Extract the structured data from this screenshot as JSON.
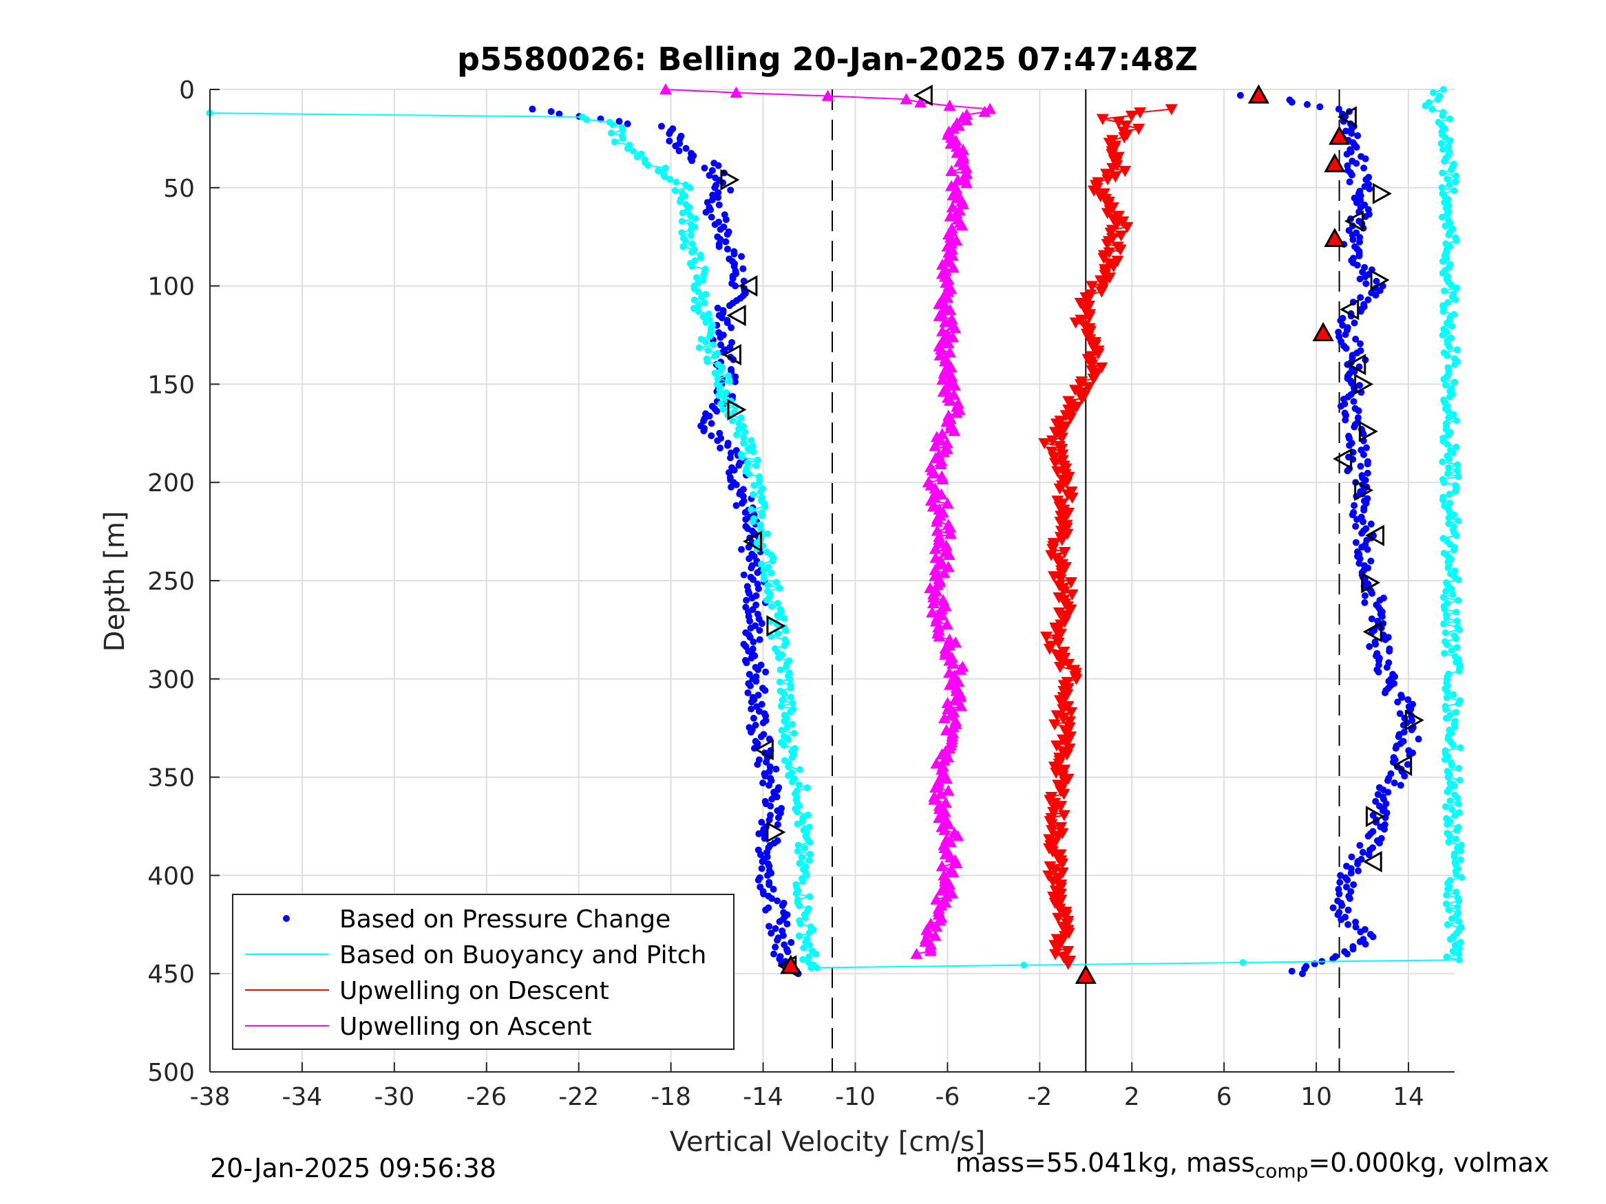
{
  "chart_data": {
    "type": "scatter",
    "title": "p5580026: Belling 20-Jan-2025 07:47:48Z",
    "xlabel": "Vertical Velocity [cm/s]",
    "ylabel": "Depth [m]",
    "xlim": [
      -38,
      16
    ],
    "ylim": [
      0,
      500
    ],
    "y_reversed": true,
    "grid": true,
    "legend_position": "bottom-left",
    "x_ticks": [
      "-38",
      "-34",
      "-30",
      "-26",
      "-22",
      "-18",
      "-14",
      "-10",
      "-6",
      "-2",
      "2",
      "6",
      "10",
      "14"
    ],
    "y_ticks": [
      "0",
      "50",
      "100",
      "150",
      "200",
      "250",
      "300",
      "350",
      "400",
      "450",
      "500"
    ],
    "reference_lines": {
      "dashed_x": [
        -11,
        11
      ],
      "solid_x": [
        0
      ]
    },
    "series": [
      {
        "name": "Based on Pressure Change",
        "color": "#0000ff",
        "marker": "dot",
        "profiles": [
          {
            "part": "descent",
            "depth": [
              10,
              20,
              30,
              40,
              50,
              60,
              70,
              80,
              90,
              100,
              110,
              120,
              130,
              140,
              150,
              160,
              170,
              180,
              190,
              200,
              220,
              240,
              260,
              280,
              300,
              320,
              340,
              360,
              380,
              400,
              420,
              440,
              450
            ],
            "velocity": [
              -24,
              -18,
              -17.5,
              -16.2,
              -15.8,
              -16.2,
              -15.8,
              -15.5,
              -15.2,
              -15,
              -15.5,
              -15.8,
              -15.8,
              -15.6,
              -15.5,
              -15.7,
              -16.5,
              -15.5,
              -15.2,
              -15.0,
              -14.7,
              -14.5,
              -14.3,
              -14.5,
              -14.2,
              -14.3,
              -14.0,
              -13.5,
              -13.8,
              -13.8,
              -13.4,
              -13.1,
              -12.5
            ]
          },
          {
            "part": "ascent",
            "depth": [
              450,
              440,
              430,
              420,
              400,
              380,
              360,
              340,
              320,
              300,
              280,
              260,
              240,
              220,
              200,
              180,
              160,
              140,
              120,
              100,
              80,
              60,
              40,
              20,
              10,
              3
            ],
            "velocity": [
              9,
              11.5,
              12.2,
              11,
              11.5,
              12.5,
              13,
              13.8,
              14.2,
              13,
              12.7,
              12.5,
              12.2,
              12,
              11.8,
              11.8,
              11.5,
              11.8,
              11.2,
              12.5,
              11.5,
              12,
              11.8,
              11.5,
              11.3,
              7
            ]
          }
        ]
      },
      {
        "name": "Based on Buoyancy and Pitch",
        "color": "#00ffff",
        "marker": "dot-line",
        "profiles": [
          {
            "part": "descent",
            "depth": [
              12,
              14,
              18,
              25,
              30,
              40,
              50,
              60,
              70,
              80,
              90,
              100,
              110,
              120,
              130,
              140,
              150,
              160,
              170,
              180,
              190,
              200,
              220,
              240,
              260,
              280,
              300,
              320,
              340,
              360,
              380,
              400,
              420,
              440,
              447
            ],
            "velocity": [
              -38,
              -22,
              -20.5,
              -20.2,
              -20,
              -18.5,
              -17.5,
              -17.3,
              -17.2,
              -17.2,
              -16.8,
              -16.8,
              -16.7,
              -16.5,
              -16.5,
              -16,
              -15.7,
              -15.5,
              -15.2,
              -14.8,
              -14.5,
              -14.3,
              -14.2,
              -13.8,
              -13.5,
              -13.3,
              -13,
              -13,
              -12.8,
              -12.3,
              -12.3,
              -12.3,
              -12.2,
              -12,
              -12
            ]
          },
          {
            "part": "ascent",
            "depth": [
              447,
              443,
              20,
              15,
              10,
              5,
              0
            ],
            "velocity": [
              -12,
              16,
              15.7,
              15.5,
              15,
              15.2,
              15.5
            ]
          }
        ]
      },
      {
        "name": "Upwelling on Descent",
        "color": "#ff0000",
        "marker": "triangle-down",
        "profiles": [
          {
            "part": "descent",
            "depth": [
              10,
              15,
              20,
              30,
              40,
              50,
              60,
              70,
              80,
              90,
              100,
              110,
              120,
              130,
              140,
              150,
              160,
              170,
              180,
              190,
              200,
              220,
              240,
              260,
              280,
              300,
              320,
              340,
              360,
              380,
              400,
              420,
              440,
              445
            ],
            "velocity": [
              3.5,
              1,
              2,
              1,
              1.5,
              0.5,
              1.2,
              1.5,
              1.2,
              1,
              0.5,
              0,
              -0.2,
              0.3,
              0.5,
              0,
              -0.5,
              -1,
              -1.5,
              -1,
              -0.8,
              -1,
              -1.2,
              -0.8,
              -1.5,
              -0.6,
              -1,
              -1,
              -1.2,
              -1.3,
              -1.3,
              -1.1,
              -1,
              -0.5
            ]
          }
        ]
      },
      {
        "name": "Upwelling on Ascent",
        "color": "#ff00ff",
        "marker": "triangle-up",
        "profiles": [
          {
            "part": "ascent",
            "depth": [
              440,
              420,
              400,
              380,
              360,
              340,
              320,
              300,
              280,
              260,
              240,
              220,
              200,
              180,
              160,
              140,
              120,
              100,
              80,
              60,
              40,
              20,
              10,
              5,
              0
            ],
            "velocity": [
              -7,
              -6.3,
              -6,
              -5.8,
              -6.3,
              -6.2,
              -5.8,
              -5.5,
              -6,
              -6.5,
              -6.2,
              -6.2,
              -6.5,
              -6.2,
              -5.7,
              -6.1,
              -6,
              -6.2,
              -5.9,
              -5.5,
              -5.5,
              -5.7,
              -4.5,
              -8,
              -18.5
            ]
          }
        ]
      }
    ],
    "black_triangle_markers": [
      {
        "x": -15.5,
        "y": 46
      },
      {
        "x": -14.6,
        "y": 100
      },
      {
        "x": -15.1,
        "y": 115
      },
      {
        "x": -15.3,
        "y": 135
      },
      {
        "x": -15.2,
        "y": 163
      },
      {
        "x": -14.4,
        "y": 230
      },
      {
        "x": -13.5,
        "y": 273
      },
      {
        "x": -13.9,
        "y": 336
      },
      {
        "x": -13.5,
        "y": 378
      },
      {
        "x": -12.9,
        "y": 446
      },
      {
        "x": -7,
        "y": 3
      },
      {
        "x": 11.4,
        "y": 14
      },
      {
        "x": 12.8,
        "y": 53
      },
      {
        "x": 11.7,
        "y": 67
      },
      {
        "x": 12.7,
        "y": 97
      },
      {
        "x": 11.5,
        "y": 112
      },
      {
        "x": 11.8,
        "y": 140
      },
      {
        "x": 12.0,
        "y": 150
      },
      {
        "x": 12.2,
        "y": 174
      },
      {
        "x": 11.2,
        "y": 188
      },
      {
        "x": 12.0,
        "y": 204
      },
      {
        "x": 12.6,
        "y": 227
      },
      {
        "x": 12.3,
        "y": 251
      },
      {
        "x": 12.5,
        "y": 276
      },
      {
        "x": 14.2,
        "y": 321
      },
      {
        "x": 13.8,
        "y": 344
      },
      {
        "x": 12.5,
        "y": 370
      },
      {
        "x": 12.5,
        "y": 393
      }
    ],
    "red_triangle_markers": [
      {
        "x": 7.5,
        "y": 3
      },
      {
        "x": 11,
        "y": 24
      },
      {
        "x": 10.8,
        "y": 38
      },
      {
        "x": 10.8,
        "y": 76
      },
      {
        "x": 10.3,
        "y": 124
      },
      {
        "x": -12.8,
        "y": 446
      },
      {
        "x": 0,
        "y": 451
      }
    ]
  },
  "footer": {
    "timestamp": "20-Jan-2025 09:56:38",
    "mass_text": "mass=55.041kg, mass",
    "mass_sub": "comp",
    "mass_rest": "=0.000kg, volmax"
  }
}
